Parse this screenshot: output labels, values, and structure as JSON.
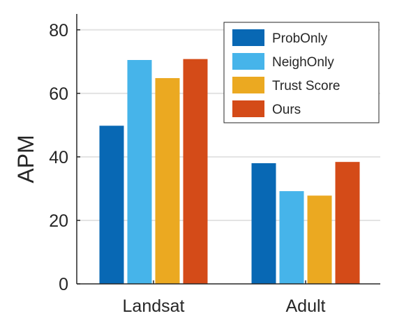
{
  "chart_data": {
    "type": "bar",
    "title": "",
    "xlabel": "",
    "ylabel": "APM",
    "ylim": [
      0,
      85
    ],
    "yticks": [
      0,
      20,
      40,
      60,
      80
    ],
    "grid": "horizontal",
    "legend_position": "top-right",
    "categories": [
      "Landsat",
      "Adult"
    ],
    "series": [
      {
        "name": "ProbOnly",
        "color": "#0868b4",
        "values": [
          49.8,
          38.0
        ]
      },
      {
        "name": "NeighOnly",
        "color": "#46b4ea",
        "values": [
          70.5,
          29.2
        ]
      },
      {
        "name": "Trust Score",
        "color": "#eba921",
        "values": [
          64.8,
          27.8
        ]
      },
      {
        "name": "Ours",
        "color": "#d44b18",
        "values": [
          70.8,
          38.4
        ]
      }
    ]
  }
}
